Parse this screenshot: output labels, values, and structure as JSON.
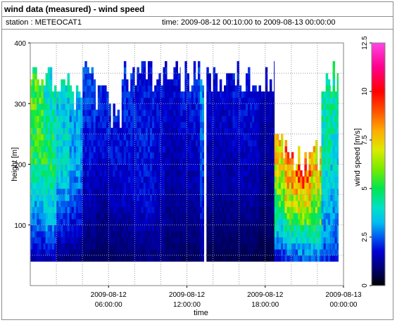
{
  "header": {
    "title": "wind data (measured) - wind speed",
    "station": "station : METEOCAT1",
    "time_range": "time: 2009-08-12 00:10:00 to 2009-08-13 00:00:00"
  },
  "chart_data": {
    "type": "heatmap",
    "xlabel": "time",
    "ylabel": "height [m]",
    "colorbar_label": "wind speed [m/s]",
    "xlim": [
      0,
      24
    ],
    "ylim": [
      0,
      400
    ],
    "x_ticks": [
      {
        "value": 6,
        "line1": "2009-08-12",
        "line2": "06:00:00"
      },
      {
        "value": 12,
        "line1": "2009-08-12",
        "line2": "12:00:00"
      },
      {
        "value": 18,
        "line1": "2009-08-12",
        "line2": "18:00:00"
      },
      {
        "value": 24,
        "line1": "2009-08-13",
        "line2": "00:00:00"
      }
    ],
    "y_ticks": [
      100,
      200,
      300,
      400
    ],
    "colorbar_range": [
      0,
      12.5
    ],
    "colorbar_ticks": [
      0,
      2.5,
      5,
      7.5,
      10,
      12.5
    ],
    "grid": true,
    "time_step_hours": 0.1667,
    "height_min": 40,
    "height_step": 10,
    "columns": [
      {
        "from": 0.0,
        "to": 1.0,
        "top": 365,
        "profile": [
          [
            0,
            1.5
          ],
          [
            25,
            3.0
          ],
          [
            50,
            5.0
          ],
          [
            80,
            5.5
          ],
          [
            100,
            5.5
          ]
        ]
      },
      {
        "from": 1.0,
        "to": 2.0,
        "top": 365,
        "profile": [
          [
            0,
            1.5
          ],
          [
            25,
            3.5
          ],
          [
            50,
            5.0
          ],
          [
            80,
            4.0
          ],
          [
            100,
            4.0
          ]
        ]
      },
      {
        "from": 2.0,
        "to": 3.0,
        "top": 355,
        "profile": [
          [
            0,
            1.0
          ],
          [
            25,
            2.5
          ],
          [
            50,
            4.0
          ],
          [
            80,
            3.5
          ],
          [
            100,
            4.5
          ]
        ]
      },
      {
        "from": 3.0,
        "to": 4.0,
        "top": 330,
        "profile": [
          [
            0,
            1.0
          ],
          [
            25,
            2.0
          ],
          [
            50,
            3.0
          ],
          [
            80,
            3.0
          ],
          [
            100,
            4.0
          ]
        ]
      },
      {
        "from": 4.0,
        "to": 5.0,
        "top": 365,
        "profile": [
          [
            0,
            0.8
          ],
          [
            30,
            1.5
          ],
          [
            60,
            2.0
          ],
          [
            100,
            2.5
          ]
        ]
      },
      {
        "from": 5.0,
        "to": 6.0,
        "top": 340,
        "profile": [
          [
            0,
            0.7
          ],
          [
            30,
            1.2
          ],
          [
            60,
            1.8
          ],
          [
            100,
            2.2
          ]
        ]
      },
      {
        "from": 6.0,
        "to": 7.0,
        "top": 300,
        "profile": [
          [
            0,
            0.8
          ],
          [
            30,
            1.4
          ],
          [
            70,
            1.9
          ],
          [
            100,
            2.0
          ]
        ]
      },
      {
        "from": 7.0,
        "to": 8.0,
        "top": 365,
        "profile": [
          [
            0,
            0.8
          ],
          [
            30,
            1.6
          ],
          [
            70,
            2.0
          ],
          [
            100,
            2.2
          ]
        ]
      },
      {
        "from": 8.0,
        "to": 9.5,
        "top": 365,
        "profile": [
          [
            0,
            1.0
          ],
          [
            30,
            1.8
          ],
          [
            70,
            2.0
          ],
          [
            100,
            1.8
          ]
        ]
      },
      {
        "from": 9.5,
        "to": 10.3,
        "top": 365,
        "profile": [
          [
            0,
            1.0
          ],
          [
            30,
            1.6
          ],
          [
            70,
            1.8
          ],
          [
            100,
            1.9
          ]
        ]
      },
      {
        "from": 10.3,
        "to": 11.5,
        "top": 365,
        "profile": [
          [
            0,
            0.8
          ],
          [
            30,
            1.2
          ],
          [
            70,
            1.6
          ],
          [
            100,
            1.8
          ]
        ]
      },
      {
        "from": 11.5,
        "to": 13.0,
        "top": 365,
        "profile": [
          [
            0,
            0.7
          ],
          [
            30,
            1.3
          ],
          [
            70,
            1.8
          ],
          [
            100,
            2.2
          ]
        ]
      },
      {
        "from": 13.0,
        "to": 13.3,
        "top": 365,
        "profile": [
          [
            0,
            1.2
          ],
          [
            30,
            2.0
          ],
          [
            70,
            2.6
          ],
          [
            100,
            3.2
          ]
        ]
      },
      {
        "from": 13.5,
        "to": 15.5,
        "top": 365,
        "profile": [
          [
            0,
            0.6
          ],
          [
            30,
            1.2
          ],
          [
            70,
            1.6
          ],
          [
            100,
            1.8
          ]
        ]
      },
      {
        "from": 15.5,
        "to": 17.5,
        "top": 365,
        "profile": [
          [
            0,
            0.6
          ],
          [
            30,
            1.3
          ],
          [
            70,
            1.8
          ],
          [
            100,
            2.0
          ]
        ]
      },
      {
        "from": 17.5,
        "to": 18.7,
        "top": 365,
        "profile": [
          [
            0,
            0.5
          ],
          [
            30,
            1.0
          ],
          [
            70,
            1.4
          ],
          [
            100,
            1.7
          ]
        ]
      },
      {
        "from": 18.7,
        "to": 19.5,
        "top": 250,
        "profile": [
          [
            0,
            1.8
          ],
          [
            20,
            3.5
          ],
          [
            40,
            5.0
          ],
          [
            70,
            6.8
          ],
          [
            100,
            7.5
          ]
        ]
      },
      {
        "from": 19.5,
        "to": 20.5,
        "top": 240,
        "profile": [
          [
            0,
            2.2
          ],
          [
            20,
            4.0
          ],
          [
            40,
            6.0
          ],
          [
            70,
            8.5
          ],
          [
            100,
            8.0
          ]
        ]
      },
      {
        "from": 20.5,
        "to": 21.5,
        "top": 230,
        "profile": [
          [
            0,
            2.5
          ],
          [
            20,
            4.2
          ],
          [
            40,
            6.5
          ],
          [
            70,
            8.8
          ],
          [
            100,
            8.0
          ]
        ]
      },
      {
        "from": 21.5,
        "to": 22.3,
        "top": 240,
        "profile": [
          [
            0,
            2.5
          ],
          [
            20,
            4.5
          ],
          [
            40,
            6.0
          ],
          [
            70,
            7.5
          ],
          [
            100,
            7.2
          ]
        ]
      },
      {
        "from": 22.3,
        "to": 23.0,
        "top": 365,
        "profile": [
          [
            0,
            2.2
          ],
          [
            20,
            3.2
          ],
          [
            40,
            3.8
          ],
          [
            70,
            4.3
          ],
          [
            100,
            5.0
          ]
        ]
      },
      {
        "from": 23.0,
        "to": 23.6,
        "top": 365,
        "profile": [
          [
            0,
            2.0
          ],
          [
            20,
            3.0
          ],
          [
            40,
            3.6
          ],
          [
            70,
            4.2
          ],
          [
            100,
            5.0
          ]
        ]
      }
    ]
  }
}
